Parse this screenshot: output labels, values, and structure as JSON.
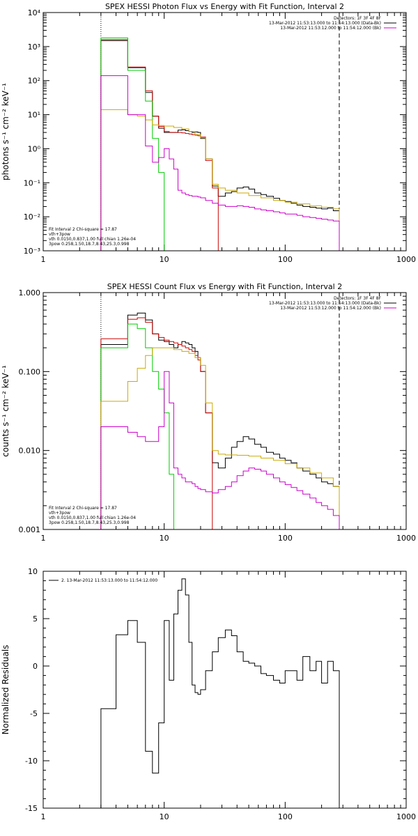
{
  "chart_data": [
    {
      "type": "line",
      "title": "SPEX HESSI Photon Flux vs Energy with Fit Function, Interval 2",
      "ylabel": "photons s⁻¹ cm⁻² keV⁻¹",
      "xscale": "log",
      "yscale": "log",
      "xlim": [
        1,
        1000
      ],
      "ylim": [
        0.001,
        10000
      ],
      "xticks": [
        "1",
        "10",
        "100",
        "1000"
      ],
      "yticks": [
        "10⁻³",
        "10⁻²",
        "10⁻¹",
        "10⁰",
        "10¹",
        "10²",
        "10³",
        "10⁴"
      ],
      "legend_right": [
        {
          "text": "Detectors: 1F 3F 4F 8F",
          "color": "#000000"
        },
        {
          "text": "13-Mar-2012 11:53:13.000 to 11:54:13.000 (Data-Bk)",
          "color": "#000000"
        },
        {
          "text": "13-Mar-2012 11:53:12.000 to 11:54:12.000 (Bk)",
          "color": "#cc00cc"
        }
      ],
      "legend_left": [
        {
          "text": "Fit Interval 2   Chi-square = 17.87",
          "color": "#000000"
        },
        {
          "text": "vth+3pow",
          "color": "#cc0000"
        },
        {
          "text": "vth 0.0150,0.837,1.00  full chian 1.26e-04",
          "color": "#00cc00"
        },
        {
          "text": "3pow 0.258,1.50,18.7,8.43,25.3,0.998",
          "color": "#ccaa00"
        }
      ],
      "vlines": [
        {
          "x": 3,
          "style": "dotted"
        },
        {
          "x": 280,
          "style": "dashed"
        }
      ],
      "series": [
        {
          "color": "#000000",
          "x": [
            3,
            4,
            5,
            6,
            7,
            8,
            9,
            10,
            11,
            12,
            13,
            14,
            15,
            16,
            17,
            18,
            19,
            20,
            22,
            25,
            28,
            32,
            36,
            40,
            45,
            50,
            56,
            63,
            70,
            80,
            90,
            100,
            112,
            125,
            140,
            160,
            180,
            200,
            224,
            250,
            280
          ],
          "y": [
            1500,
            1500,
            240,
            240,
            45,
            9,
            4,
            3,
            3,
            3,
            3.5,
            3.6,
            3.4,
            3.2,
            3,
            3.1,
            3,
            2,
            0.5,
            0.08,
            0.04,
            0.05,
            0.055,
            0.07,
            0.075,
            0.065,
            0.05,
            0.045,
            0.04,
            0.035,
            0.03,
            0.028,
            0.025,
            0.022,
            0.02,
            0.019,
            0.018,
            0.017,
            0.018,
            0.015,
            0.015
          ]
        },
        {
          "color": "#cc0000",
          "x": [
            3,
            4,
            5,
            6,
            7,
            8,
            9,
            10,
            11,
            12,
            13,
            14,
            15,
            16,
            17,
            18,
            19,
            20,
            22,
            25,
            28
          ],
          "y": [
            1600,
            1600,
            250,
            250,
            50,
            9,
            4.5,
            3.2,
            3,
            3,
            3,
            2.9,
            2.8,
            2.7,
            2.6,
            2.5,
            2.4,
            2.2,
            0.45,
            0.07,
            0.06
          ]
        },
        {
          "color": "#00cc00",
          "x": [
            3,
            4,
            5,
            6,
            7,
            8,
            9,
            10
          ],
          "y": [
            1800,
            1800,
            200,
            200,
            25,
            2,
            0.2,
            0.0015
          ]
        },
        {
          "color": "#ccaa00",
          "x": [
            3,
            4,
            5,
            6,
            7,
            8,
            9,
            10,
            12,
            14,
            16,
            18,
            20,
            22,
            25,
            28,
            32,
            40,
            50,
            63,
            80,
            100,
            125,
            160,
            200,
            250,
            280
          ],
          "y": [
            14,
            14,
            10,
            9,
            7,
            5,
            4.8,
            4.6,
            4.2,
            3.8,
            3.2,
            2.6,
            2.1,
            0.5,
            0.09,
            0.07,
            0.06,
            0.05,
            0.042,
            0.036,
            0.03,
            0.027,
            0.024,
            0.021,
            0.019,
            0.017,
            0.016
          ]
        },
        {
          "color": "#cc00cc",
          "x": [
            3,
            4,
            5,
            6,
            7,
            8,
            9,
            10,
            11,
            12,
            13,
            14,
            15,
            16,
            17,
            18,
            19,
            20,
            22,
            25,
            28,
            32,
            36,
            40,
            45,
            50,
            56,
            63,
            70,
            80,
            90,
            100,
            112,
            125,
            140,
            160,
            180,
            200,
            224,
            250,
            280
          ],
          "y": [
            140,
            140,
            10,
            10,
            1.2,
            0.4,
            0.55,
            1,
            0.5,
            0.25,
            0.06,
            0.05,
            0.045,
            0.042,
            0.04,
            0.04,
            0.038,
            0.036,
            0.03,
            0.025,
            0.022,
            0.02,
            0.02,
            0.021,
            0.02,
            0.019,
            0.017,
            0.016,
            0.015,
            0.014,
            0.013,
            0.012,
            0.012,
            0.011,
            0.01,
            0.0095,
            0.009,
            0.0085,
            0.008,
            0.0075,
            0.007
          ]
        }
      ]
    },
    {
      "type": "line",
      "title": "SPEX HESSI Count Flux vs Energy with Fit Function, Interval 2",
      "ylabel": "counts s⁻¹ cm⁻² keV⁻¹",
      "xscale": "log",
      "yscale": "log",
      "xlim": [
        1,
        1000
      ],
      "ylim": [
        0.001,
        1.0
      ],
      "xticks": [
        "1",
        "10",
        "100",
        "1000"
      ],
      "yticks": [
        "0.001",
        "0.010",
        "0.100",
        "1.000"
      ],
      "legend_right": [
        {
          "text": "Detectors: 1F 3F 4F 8F",
          "color": "#000000"
        },
        {
          "text": "13-Mar-2012 11:53:13.000 to 11:54:13.000 (Data-Bk)",
          "color": "#000000"
        },
        {
          "text": "13-Mar-2012 11:53:12.000 to 11:54:12.000 (Bk)",
          "color": "#cc00cc"
        }
      ],
      "legend_left": [
        {
          "text": "Fit Interval 2   Chi-square = 17.87",
          "color": "#000000"
        },
        {
          "text": "vth+3pow",
          "color": "#cc0000"
        },
        {
          "text": "vth 0.0150,0.837,1.00  full chian 1.26e-04",
          "color": "#00cc00"
        },
        {
          "text": "3pow 0.258,1.50,18.7,8.43,25.3,0.998",
          "color": "#ccaa00"
        }
      ],
      "vlines": [
        {
          "x": 3,
          "style": "dotted"
        },
        {
          "x": 280,
          "style": "dashed"
        }
      ],
      "series": [
        {
          "color": "#000000",
          "x": [
            3,
            4,
            5,
            6,
            7,
            8,
            9,
            10,
            11,
            12,
            13,
            14,
            15,
            16,
            17,
            18,
            19,
            20,
            22,
            25,
            28,
            32,
            36,
            40,
            45,
            50,
            56,
            63,
            70,
            80,
            90,
            100,
            112,
            125,
            140,
            160,
            180,
            200,
            224,
            250,
            280
          ],
          "y": [
            0.22,
            0.22,
            0.52,
            0.55,
            0.45,
            0.3,
            0.25,
            0.24,
            0.22,
            0.2,
            0.22,
            0.24,
            0.23,
            0.22,
            0.2,
            0.18,
            0.15,
            0.1,
            0.03,
            0.007,
            0.006,
            0.008,
            0.011,
            0.013,
            0.015,
            0.014,
            0.012,
            0.011,
            0.0095,
            0.009,
            0.008,
            0.0075,
            0.007,
            0.006,
            0.0055,
            0.005,
            0.0045,
            0.004,
            0.0038,
            0.0035,
            0.0033
          ]
        },
        {
          "color": "#cc0000",
          "x": [
            3,
            4,
            5,
            6,
            7,
            8,
            9,
            10,
            11,
            12,
            13,
            14,
            15,
            16,
            17,
            18,
            19,
            20,
            22,
            25
          ],
          "y": [
            0.26,
            0.26,
            0.46,
            0.48,
            0.42,
            0.3,
            0.27,
            0.25,
            0.24,
            0.23,
            0.22,
            0.21,
            0.2,
            0.19,
            0.18,
            0.16,
            0.14,
            0.1,
            0.03,
            0.01
          ]
        },
        {
          "color": "#00cc00",
          "x": [
            3,
            4,
            5,
            6,
            7,
            8,
            9,
            10,
            11,
            12
          ],
          "y": [
            0.2,
            0.2,
            0.4,
            0.35,
            0.2,
            0.1,
            0.06,
            0.03,
            0.005,
            0.001
          ]
        },
        {
          "color": "#ccaa00",
          "x": [
            3,
            4,
            5,
            6,
            7,
            8,
            9,
            10,
            12,
            14,
            16,
            18,
            20,
            22,
            25,
            28,
            32,
            40,
            50,
            63,
            80,
            100,
            125,
            160,
            200,
            250,
            280
          ],
          "y": [
            0.042,
            0.042,
            0.075,
            0.11,
            0.16,
            0.2,
            0.2,
            0.2,
            0.19,
            0.18,
            0.17,
            0.15,
            0.12,
            0.04,
            0.01,
            0.009,
            0.0088,
            0.0087,
            0.0085,
            0.008,
            0.0075,
            0.0068,
            0.006,
            0.0052,
            0.0045,
            0.0035,
            0.0025
          ]
        },
        {
          "color": "#cc00cc",
          "x": [
            3,
            4,
            5,
            6,
            7,
            8,
            9,
            10,
            11,
            12,
            13,
            14,
            15,
            16,
            17,
            18,
            19,
            20,
            22,
            25,
            28,
            32,
            36,
            40,
            45,
            50,
            56,
            63,
            70,
            80,
            90,
            100,
            112,
            125,
            140,
            160,
            180,
            200,
            224,
            250,
            280
          ],
          "y": [
            0.02,
            0.02,
            0.017,
            0.015,
            0.013,
            0.013,
            0.02,
            0.1,
            0.04,
            0.006,
            0.005,
            0.0045,
            0.004,
            0.004,
            0.0038,
            0.0035,
            0.0033,
            0.0032,
            0.003,
            0.0029,
            0.0032,
            0.0035,
            0.004,
            0.0048,
            0.0055,
            0.006,
            0.0058,
            0.0055,
            0.005,
            0.0045,
            0.004,
            0.0037,
            0.0034,
            0.0031,
            0.0028,
            0.0025,
            0.0022,
            0.002,
            0.0018,
            0.0015,
            0.0013
          ]
        }
      ]
    },
    {
      "type": "line",
      "title": "",
      "ylabel": "Normalized Residuals",
      "xscale": "log",
      "yscale": "linear",
      "xlim": [
        1,
        1000
      ],
      "ylim": [
        -15,
        10
      ],
      "xticks": [
        "1",
        "10",
        "100",
        "1000"
      ],
      "yticks": [
        "-15",
        "-10",
        "-5",
        "0",
        "5",
        "10"
      ],
      "legend_left": [
        {
          "text": "2. 13-Mar-2012 11:53:13.000 to 11:54:12.000",
          "color": "#000000"
        }
      ],
      "series": [
        {
          "color": "#000000",
          "x": [
            3,
            4,
            5,
            6,
            7,
            8,
            9,
            10,
            11,
            12,
            13,
            14,
            15,
            16,
            17,
            18,
            19,
            20,
            22,
            25,
            28,
            32,
            36,
            40,
            45,
            50,
            56,
            63,
            70,
            80,
            90,
            100,
            112,
            125,
            140,
            160,
            180,
            200,
            224,
            250,
            280
          ],
          "y": [
            -4.5,
            3.3,
            4.8,
            2.5,
            -9,
            -11.3,
            -6,
            4.8,
            -1.5,
            5.5,
            8,
            9.2,
            7.5,
            2.5,
            -2,
            -2.8,
            -3,
            -2.5,
            -0.5,
            1.5,
            3,
            3.8,
            3.2,
            1.5,
            0.5,
            0.3,
            0,
            -0.8,
            -1,
            -1.5,
            -1.8,
            -0.5,
            -0.5,
            -1.5,
            1,
            -0.5,
            0.5,
            -1.8,
            0.5,
            -0.5,
            0.8
          ]
        }
      ]
    }
  ]
}
